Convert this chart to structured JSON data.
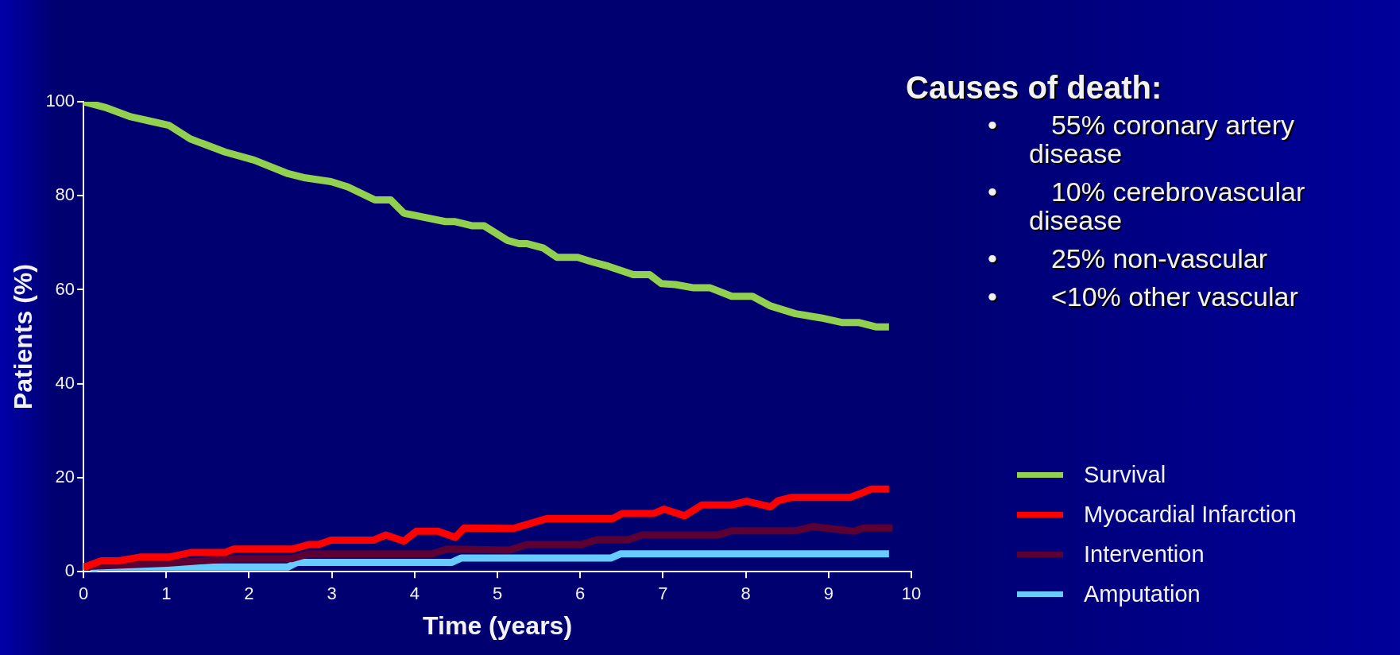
{
  "chart_data": {
    "type": "line",
    "xlabel": "Time (years)",
    "ylabel": "Patients (%)",
    "xlim": [
      0,
      10
    ],
    "xticks": [
      0,
      1,
      2,
      3,
      4,
      5,
      6,
      7,
      8,
      9,
      10
    ],
    "ylim": [
      0,
      100
    ],
    "yticks": [
      0,
      20,
      40,
      60,
      80,
      100
    ],
    "grid": false,
    "legend": "bottom right",
    "marker": "none",
    "line_style": "solid",
    "annotations": [
      "Causes of death:",
      "• 55% coronary artery disease",
      "• 10% cerebrovascular disease",
      "• 25% non-vascular",
      "• <10% other vascular"
    ],
    "series": [
      {
        "name": "Survival",
        "color": "#92d050",
        "x": [
          0,
          0.26,
          0.57,
          0.8,
          1.03,
          1.29,
          1.71,
          2.06,
          2.47,
          2.68,
          2.99,
          3.19,
          3.52,
          3.71,
          3.87,
          4.37,
          4.49,
          4.7,
          4.84,
          5.12,
          5.26,
          5.36,
          5.55,
          5.72,
          5.97,
          6.13,
          6.34,
          6.64,
          6.84,
          6.98,
          7.15,
          7.37,
          7.57,
          7.83,
          8.08,
          8.29,
          8.6,
          8.91,
          9.17,
          9.37,
          9.57,
          9.73
        ],
        "values": [
          100,
          98.8,
          96.8,
          95.9,
          95,
          92.1,
          89.3,
          87.6,
          84.7,
          83.8,
          83,
          81.9,
          79.1,
          79.1,
          76.3,
          74.5,
          74.5,
          73.6,
          73.6,
          70.5,
          69.8,
          69.8,
          68.9,
          66.9,
          66.9,
          66,
          65,
          63.2,
          63.2,
          61.3,
          61.1,
          60.4,
          60.4,
          58.6,
          58.6,
          56.6,
          54.9,
          54,
          53,
          53,
          52.1,
          52.1
        ]
      },
      {
        "name": "Myocardial Infarction",
        "color": "#ff0000",
        "x": [
          0,
          0.21,
          0.42,
          0.68,
          1.03,
          1.31,
          1.71,
          1.81,
          2.52,
          2.73,
          2.84,
          2.99,
          3.5,
          3.65,
          3.87,
          4.02,
          4.28,
          4.49,
          4.6,
          5.19,
          5.6,
          6.39,
          6.51,
          6.89,
          7.01,
          7.26,
          7.47,
          7.82,
          8.01,
          8.3,
          8.39,
          8.55,
          9.26,
          9.41,
          9.52,
          9.73
        ],
        "values": [
          0.9,
          2.3,
          2.3,
          3.1,
          3.1,
          4.1,
          4.1,
          4.8,
          4.8,
          5.8,
          5.8,
          6.7,
          6.7,
          7.8,
          6.5,
          8.6,
          8.6,
          7.3,
          9.3,
          9.2,
          11.3,
          11.3,
          12.4,
          12.4,
          13.3,
          11.9,
          14.2,
          14.2,
          15,
          13.8,
          15.1,
          15.8,
          15.8,
          16.8,
          17.6,
          17.6
        ]
      },
      {
        "name": "Intervention",
        "color": "#5c0033",
        "x": [
          0,
          1.01,
          1.81,
          2.52,
          2.72,
          4.21,
          4.39,
          5.14,
          5.36,
          6.02,
          6.2,
          6.58,
          6.75,
          7.66,
          7.83,
          8.6,
          8.81,
          9.31,
          9.42,
          9.77
        ],
        "values": [
          1.1,
          1.8,
          2.8,
          2.8,
          3.8,
          3.8,
          4.8,
          4.6,
          5.8,
          5.8,
          6.8,
          6.8,
          7.8,
          7.8,
          8.7,
          8.7,
          9.6,
          8.6,
          9.3,
          9.3
        ]
      },
      {
        "name": "Amputation",
        "color": "#66ccff",
        "x": [
          0.09,
          0.17,
          2.47,
          2.58,
          4.45,
          4.56,
          6.37,
          6.49,
          9.73
        ],
        "values": [
          0.1,
          1,
          1,
          2,
          2,
          2.9,
          2.9,
          3.8,
          3.8
        ]
      }
    ]
  }
}
